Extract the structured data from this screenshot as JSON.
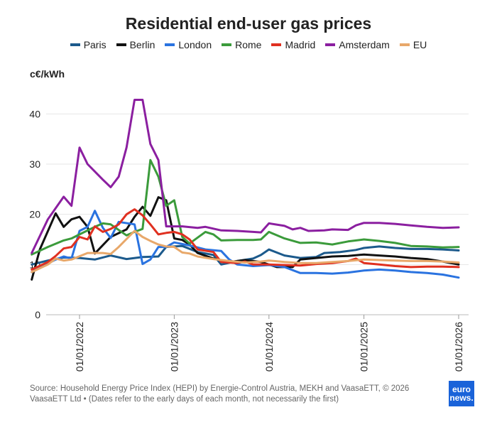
{
  "title": "Residential end-user gas prices",
  "unit_label": "c€/kWh",
  "source": "Source: Household Energy Price Index (HEPI) by Energie-Control Austria, MEKH and VaasaETT, © 2026 VaasaETT Ltd • (Dates refer to the early days of each month, not necessarily the first)",
  "logo": {
    "line1": "euro",
    "line2": "news."
  },
  "chart_data": {
    "type": "line",
    "title": "Residential end-user gas prices",
    "ylabel": "c€/kWh",
    "xlabel": "",
    "ylim": [
      0,
      45
    ],
    "yticks": [
      0,
      10,
      20,
      30,
      40
    ],
    "xlim": [
      "2021-07-01",
      "2026-01-01"
    ],
    "xticks": [
      {
        "date": "2022-01-01",
        "label": "01/01/2022"
      },
      {
        "date": "2023-01-01",
        "label": "01/01/2023"
      },
      {
        "date": "2024-01-01",
        "label": "01/01/2024"
      },
      {
        "date": "2025-01-01",
        "label": "01/01/2025"
      },
      {
        "date": "2026-01-01",
        "label": "01/01/2026"
      }
    ],
    "grid": "horizontal",
    "legend_position": "top",
    "series": [
      {
        "name": "Paris",
        "color": "#1c5a8c",
        "points": [
          [
            "2021-07-01",
            10.0
          ],
          [
            "2021-09-01",
            10.8
          ],
          [
            "2021-11-01",
            11.4
          ],
          [
            "2022-01-01",
            11.3
          ],
          [
            "2022-03-01",
            11.0
          ],
          [
            "2022-05-01",
            11.8
          ],
          [
            "2022-07-01",
            11.1
          ],
          [
            "2022-09-01",
            11.5
          ],
          [
            "2022-11-01",
            11.6
          ],
          [
            "2022-12-01",
            13.5
          ],
          [
            "2023-02-01",
            13.7
          ],
          [
            "2023-04-01",
            12.5
          ],
          [
            "2023-06-01",
            11.9
          ],
          [
            "2023-07-01",
            10.0
          ],
          [
            "2023-09-01",
            10.7
          ],
          [
            "2023-11-01",
            11.2
          ],
          [
            "2023-12-01",
            11.9
          ],
          [
            "2024-01-01",
            13.0
          ],
          [
            "2024-03-01",
            11.8
          ],
          [
            "2024-05-01",
            11.3
          ],
          [
            "2024-07-01",
            11.5
          ],
          [
            "2024-08-01",
            12.3
          ],
          [
            "2024-10-01",
            12.5
          ],
          [
            "2024-12-01",
            12.9
          ],
          [
            "2025-01-01",
            13.3
          ],
          [
            "2025-03-01",
            13.6
          ],
          [
            "2025-05-01",
            13.3
          ],
          [
            "2025-07-01",
            13.1
          ],
          [
            "2025-09-01",
            13.1
          ],
          [
            "2025-11-01",
            13.0
          ],
          [
            "2026-01-01",
            12.8
          ]
        ]
      },
      {
        "name": "Berlin",
        "color": "#111111",
        "points": [
          [
            "2021-07-01",
            7.0
          ],
          [
            "2021-08-01",
            13.0
          ],
          [
            "2021-10-01",
            20.2
          ],
          [
            "2021-11-01",
            17.5
          ],
          [
            "2021-12-01",
            19.0
          ],
          [
            "2022-01-01",
            19.5
          ],
          [
            "2022-02-01",
            17.5
          ],
          [
            "2022-03-01",
            12.2
          ],
          [
            "2022-05-01",
            15.5
          ],
          [
            "2022-07-01",
            17.0
          ],
          [
            "2022-08-01",
            19.5
          ],
          [
            "2022-09-01",
            21.5
          ],
          [
            "2022-10-01",
            19.7
          ],
          [
            "2022-11-01",
            23.4
          ],
          [
            "2022-12-01",
            22.8
          ],
          [
            "2023-01-01",
            15.2
          ],
          [
            "2023-02-01",
            14.9
          ],
          [
            "2023-03-01",
            14.0
          ],
          [
            "2023-04-01",
            12.3
          ],
          [
            "2023-06-01",
            11.2
          ],
          [
            "2023-08-01",
            10.5
          ],
          [
            "2023-10-01",
            10.9
          ],
          [
            "2023-12-01",
            10.5
          ],
          [
            "2024-02-01",
            9.5
          ],
          [
            "2024-04-01",
            9.5
          ],
          [
            "2024-05-01",
            11.0
          ],
          [
            "2024-07-01",
            11.3
          ],
          [
            "2024-09-01",
            11.6
          ],
          [
            "2024-11-01",
            11.7
          ],
          [
            "2025-01-01",
            12.0
          ],
          [
            "2025-03-01",
            11.8
          ],
          [
            "2025-05-01",
            11.6
          ],
          [
            "2025-07-01",
            11.3
          ],
          [
            "2025-09-01",
            11.1
          ],
          [
            "2025-11-01",
            10.6
          ],
          [
            "2026-01-01",
            10.0
          ]
        ]
      },
      {
        "name": "London",
        "color": "#2a73e0",
        "points": [
          [
            "2021-07-01",
            8.5
          ],
          [
            "2021-09-01",
            10.2
          ],
          [
            "2021-10-01",
            11.0
          ],
          [
            "2021-11-01",
            11.6
          ],
          [
            "2021-12-01",
            11.2
          ],
          [
            "2022-01-01",
            16.7
          ],
          [
            "2022-02-01",
            17.5
          ],
          [
            "2022-03-01",
            20.7
          ],
          [
            "2022-04-01",
            17.3
          ],
          [
            "2022-05-01",
            15.3
          ],
          [
            "2022-06-01",
            18.5
          ],
          [
            "2022-08-01",
            18.0
          ],
          [
            "2022-09-01",
            10.1
          ],
          [
            "2022-10-01",
            11.0
          ],
          [
            "2022-11-01",
            13.5
          ],
          [
            "2022-12-01",
            13.5
          ],
          [
            "2023-01-01",
            14.4
          ],
          [
            "2023-03-01",
            13.8
          ],
          [
            "2023-05-01",
            13.0
          ],
          [
            "2023-07-01",
            12.7
          ],
          [
            "2023-08-01",
            11.0
          ],
          [
            "2023-09-01",
            10.0
          ],
          [
            "2023-11-01",
            9.7
          ],
          [
            "2024-01-01",
            9.9
          ],
          [
            "2024-03-01",
            9.5
          ],
          [
            "2024-05-01",
            8.3
          ],
          [
            "2024-07-01",
            8.3
          ],
          [
            "2024-09-01",
            8.2
          ],
          [
            "2024-11-01",
            8.4
          ],
          [
            "2025-01-01",
            8.8
          ],
          [
            "2025-03-01",
            9.0
          ],
          [
            "2025-05-01",
            8.8
          ],
          [
            "2025-07-01",
            8.5
          ],
          [
            "2025-09-01",
            8.3
          ],
          [
            "2025-11-01",
            8.0
          ],
          [
            "2026-01-01",
            7.4
          ]
        ]
      },
      {
        "name": "Rome",
        "color": "#3b9b3b",
        "points": [
          [
            "2021-07-01",
            12.0
          ],
          [
            "2021-09-01",
            13.5
          ],
          [
            "2021-11-01",
            14.8
          ],
          [
            "2021-12-01",
            15.2
          ],
          [
            "2022-01-01",
            16.0
          ],
          [
            "2022-03-01",
            17.5
          ],
          [
            "2022-04-01",
            18.2
          ],
          [
            "2022-05-01",
            18.0
          ],
          [
            "2022-07-01",
            15.8
          ],
          [
            "2022-08-01",
            16.5
          ],
          [
            "2022-09-01",
            17.1
          ],
          [
            "2022-10-01",
            30.8
          ],
          [
            "2022-11-01",
            27.5
          ],
          [
            "2022-12-01",
            21.7
          ],
          [
            "2023-01-01",
            22.8
          ],
          [
            "2023-02-01",
            15.5
          ],
          [
            "2023-03-01",
            14.2
          ],
          [
            "2023-05-01",
            16.5
          ],
          [
            "2023-06-01",
            16.0
          ],
          [
            "2023-07-01",
            14.8
          ],
          [
            "2023-09-01",
            14.9
          ],
          [
            "2023-11-01",
            14.9
          ],
          [
            "2023-12-01",
            15.0
          ],
          [
            "2024-01-01",
            16.5
          ],
          [
            "2024-03-01",
            15.2
          ],
          [
            "2024-05-01",
            14.3
          ],
          [
            "2024-07-01",
            14.4
          ],
          [
            "2024-09-01",
            14.0
          ],
          [
            "2024-11-01",
            14.6
          ],
          [
            "2025-01-01",
            15.0
          ],
          [
            "2025-03-01",
            14.7
          ],
          [
            "2025-05-01",
            14.3
          ],
          [
            "2025-07-01",
            13.7
          ],
          [
            "2025-09-01",
            13.6
          ],
          [
            "2025-11-01",
            13.4
          ],
          [
            "2026-01-01",
            13.5
          ]
        ]
      },
      {
        "name": "Madrid",
        "color": "#e03020",
        "points": [
          [
            "2021-07-01",
            9.0
          ],
          [
            "2021-09-01",
            10.5
          ],
          [
            "2021-10-01",
            11.7
          ],
          [
            "2021-11-01",
            13.2
          ],
          [
            "2021-12-01",
            13.5
          ],
          [
            "2022-01-01",
            15.5
          ],
          [
            "2022-02-01",
            15.0
          ],
          [
            "2022-03-01",
            17.6
          ],
          [
            "2022-04-01",
            16.5
          ],
          [
            "2022-05-01",
            17.1
          ],
          [
            "2022-06-01",
            18.0
          ],
          [
            "2022-07-01",
            20.0
          ],
          [
            "2022-08-01",
            21.0
          ],
          [
            "2022-09-01",
            19.8
          ],
          [
            "2022-10-01",
            18.0
          ],
          [
            "2022-11-01",
            16.0
          ],
          [
            "2022-12-01",
            16.3
          ],
          [
            "2023-01-01",
            16.5
          ],
          [
            "2023-02-01",
            16.0
          ],
          [
            "2023-03-01",
            15.0
          ],
          [
            "2023-04-01",
            13.0
          ],
          [
            "2023-06-01",
            12.5
          ],
          [
            "2023-07-01",
            10.5
          ],
          [
            "2023-09-01",
            10.3
          ],
          [
            "2023-10-01",
            10.6
          ],
          [
            "2023-11-01",
            10.0
          ],
          [
            "2024-01-01",
            10.0
          ],
          [
            "2024-03-01",
            9.9
          ],
          [
            "2024-05-01",
            9.8
          ],
          [
            "2024-07-01",
            10.1
          ],
          [
            "2024-09-01",
            10.3
          ],
          [
            "2024-11-01",
            10.7
          ],
          [
            "2024-12-01",
            11.2
          ],
          [
            "2025-01-01",
            10.3
          ],
          [
            "2025-03-01",
            10.0
          ],
          [
            "2025-05-01",
            9.7
          ],
          [
            "2025-07-01",
            9.5
          ],
          [
            "2025-09-01",
            9.6
          ],
          [
            "2025-11-01",
            9.6
          ],
          [
            "2026-01-01",
            9.5
          ]
        ]
      },
      {
        "name": "Amsterdam",
        "color": "#8b1fa0",
        "points": [
          [
            "2021-07-01",
            12.3
          ],
          [
            "2021-09-01",
            19.0
          ],
          [
            "2021-11-01",
            23.5
          ],
          [
            "2021-12-01",
            21.7
          ],
          [
            "2022-01-01",
            33.3
          ],
          [
            "2022-02-01",
            30.0
          ],
          [
            "2022-04-01",
            26.9
          ],
          [
            "2022-05-01",
            25.4
          ],
          [
            "2022-06-01",
            27.5
          ],
          [
            "2022-07-01",
            33.3
          ],
          [
            "2022-08-01",
            42.8
          ],
          [
            "2022-09-01",
            42.8
          ],
          [
            "2022-10-01",
            34.0
          ],
          [
            "2022-11-01",
            30.8
          ],
          [
            "2022-12-01",
            17.6
          ],
          [
            "2023-02-01",
            17.6
          ],
          [
            "2023-04-01",
            17.3
          ],
          [
            "2023-05-01",
            17.5
          ],
          [
            "2023-07-01",
            16.8
          ],
          [
            "2023-09-01",
            16.7
          ],
          [
            "2023-11-01",
            16.5
          ],
          [
            "2023-12-01",
            16.4
          ],
          [
            "2024-01-01",
            18.2
          ],
          [
            "2024-03-01",
            17.7
          ],
          [
            "2024-04-01",
            17.0
          ],
          [
            "2024-05-01",
            17.3
          ],
          [
            "2024-06-01",
            16.7
          ],
          [
            "2024-08-01",
            16.8
          ],
          [
            "2024-09-01",
            17.0
          ],
          [
            "2024-11-01",
            16.9
          ],
          [
            "2024-12-01",
            17.8
          ],
          [
            "2025-01-01",
            18.3
          ],
          [
            "2025-03-01",
            18.3
          ],
          [
            "2025-05-01",
            18.1
          ],
          [
            "2025-07-01",
            17.8
          ],
          [
            "2025-09-01",
            17.5
          ],
          [
            "2025-11-01",
            17.3
          ],
          [
            "2026-01-01",
            17.4
          ]
        ]
      },
      {
        "name": "EU",
        "color": "#e8a86a",
        "points": [
          [
            "2021-07-01",
            8.5
          ],
          [
            "2021-09-01",
            10.0
          ],
          [
            "2021-10-01",
            11.2
          ],
          [
            "2021-11-01",
            10.8
          ],
          [
            "2021-12-01",
            11.0
          ],
          [
            "2022-02-01",
            12.3
          ],
          [
            "2022-04-01",
            12.3
          ],
          [
            "2022-05-01",
            12.1
          ],
          [
            "2022-06-01",
            13.5
          ],
          [
            "2022-08-01",
            16.7
          ],
          [
            "2022-09-01",
            15.5
          ],
          [
            "2022-10-01",
            14.7
          ],
          [
            "2022-11-01",
            14.0
          ],
          [
            "2022-12-01",
            13.6
          ],
          [
            "2023-01-01",
            13.5
          ],
          [
            "2023-02-01",
            12.4
          ],
          [
            "2023-03-01",
            12.2
          ],
          [
            "2023-04-01",
            11.6
          ],
          [
            "2023-06-01",
            11.1
          ],
          [
            "2023-08-01",
            10.7
          ],
          [
            "2023-10-01",
            10.4
          ],
          [
            "2023-12-01",
            10.6
          ],
          [
            "2024-01-01",
            10.8
          ],
          [
            "2024-03-01",
            10.5
          ],
          [
            "2024-05-01",
            10.3
          ],
          [
            "2024-07-01",
            10.3
          ],
          [
            "2024-09-01",
            10.5
          ],
          [
            "2024-11-01",
            10.7
          ],
          [
            "2025-01-01",
            11.0
          ],
          [
            "2025-03-01",
            10.9
          ],
          [
            "2025-05-01",
            10.8
          ],
          [
            "2025-07-01",
            10.7
          ],
          [
            "2025-09-01",
            10.7
          ],
          [
            "2025-11-01",
            10.6
          ],
          [
            "2026-01-01",
            10.4
          ]
        ]
      }
    ]
  }
}
